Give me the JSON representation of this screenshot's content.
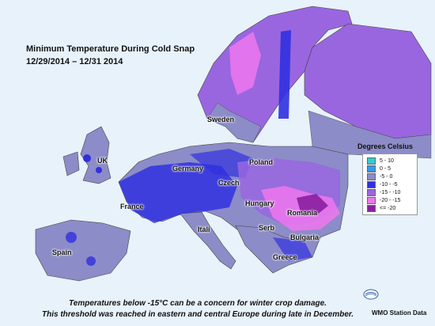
{
  "title": {
    "line1": "Minimum Temperature During Cold Snap",
    "line2": "12/29/2014 –  12/31 2014"
  },
  "countries": [
    "UK",
    "France",
    "Germany",
    "Poland",
    "Czech",
    "Hungary",
    "Romania",
    "Serb",
    "Bulgaria",
    "Greece",
    "Itali",
    "Spain",
    "Sweden"
  ],
  "legend": {
    "title": "Degrees Celsius",
    "items": [
      {
        "label": "5 - 10",
        "color": "#33cccc"
      },
      {
        "label": "0 - 5",
        "color": "#3399ee"
      },
      {
        "label": "-5 - 0",
        "color": "#8c8cc8"
      },
      {
        "label": "-10 - -5",
        "color": "#3030e0"
      },
      {
        "label": "-15 - -10",
        "color": "#9966e0"
      },
      {
        "label": "-20 - -15",
        "color": "#ee77ee"
      },
      {
        "label": "<= -20",
        "color": "#8a1fa0"
      }
    ]
  },
  "caption": {
    "line1": "Temperatures  below -15°C can be a concern for winter crop damage.",
    "line2": "This threshold was reached in eastern and central Europe during late in December."
  },
  "source": "WMO Station Data"
}
